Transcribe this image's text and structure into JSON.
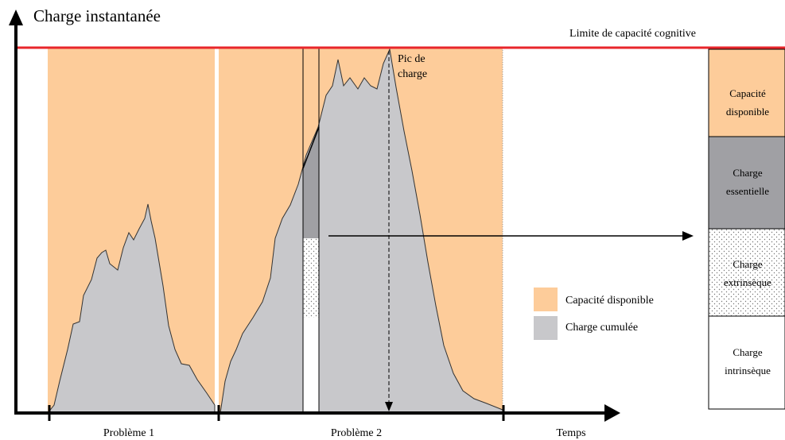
{
  "axis": {
    "y_label": "Charge instantanée",
    "x_label": "Temps",
    "segments": [
      "Problème 1",
      "Problème 2"
    ]
  },
  "limit_label": "Limite de capacité cognitive",
  "peak_label": [
    "Pic de",
    "charge"
  ],
  "legend": [
    "Capacité disponible",
    "Charge cumulée"
  ],
  "breakdown": [
    [
      "Capacité",
      "disponible"
    ],
    [
      "Charge",
      "essentielle"
    ],
    [
      "Charge",
      "extrinsèque"
    ],
    [
      "Charge",
      "intrinsèque"
    ]
  ]
}
